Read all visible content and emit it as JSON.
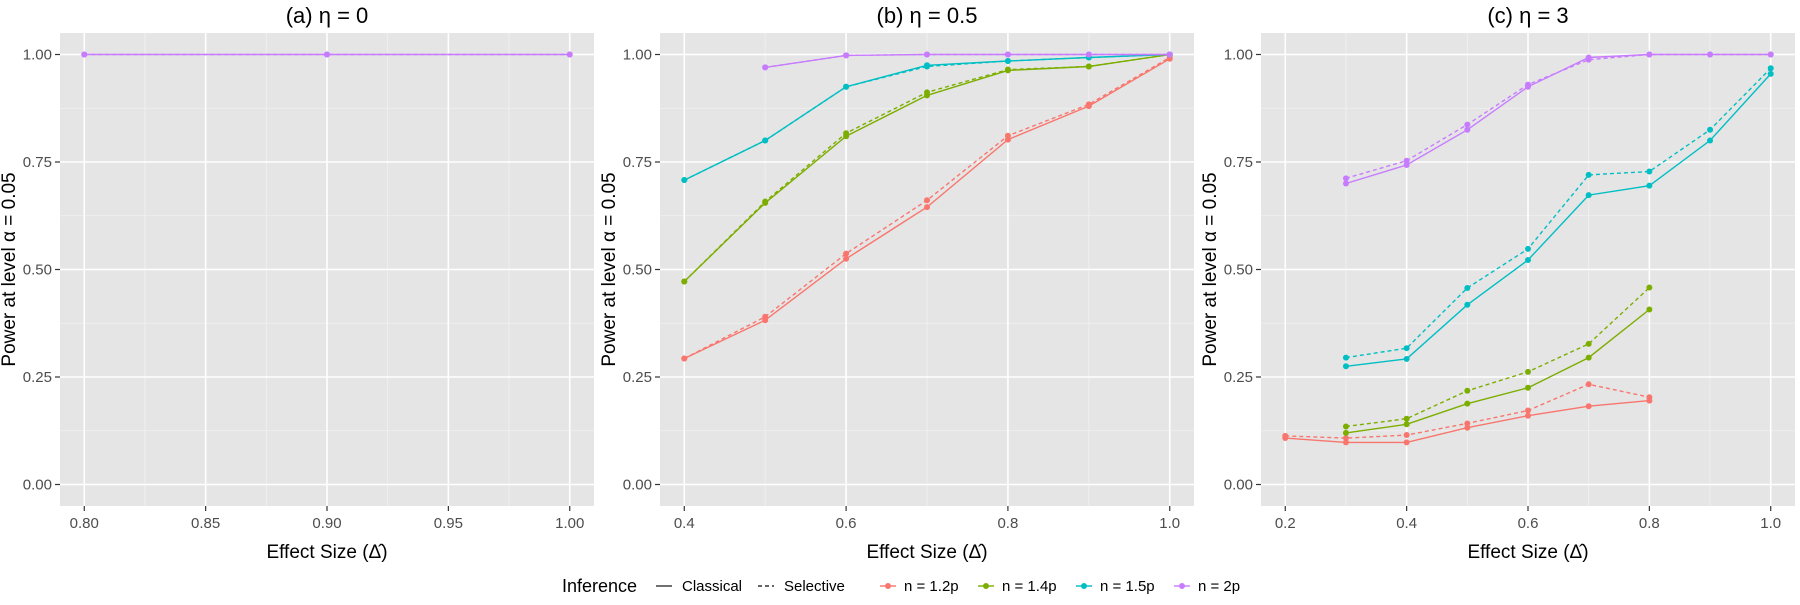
{
  "chart_data": [
    {
      "type": "line",
      "title": "(a) η = 0",
      "xlabel": "Effect Size (Δ̂)",
      "ylabel": "Power at level α = 0.05",
      "xlim": [
        0.79,
        1.01
      ],
      "ylim": [
        -0.05,
        1.05
      ],
      "xticks": [
        0.8,
        0.85,
        0.9,
        0.95,
        1.0
      ],
      "xtick_labels": [
        "0.80",
        "0.85",
        "0.90",
        "0.95",
        "1.00"
      ],
      "yticks": [
        0,
        0.25,
        0.5,
        0.75,
        1.0
      ],
      "ytick_labels": [
        "0.00",
        "0.25",
        "0.50",
        "0.75",
        "1.00"
      ],
      "series": [
        {
          "name": "n = 2p",
          "inference": "Classical",
          "x": [
            0.8,
            0.9,
            1.0
          ],
          "values": [
            1.0,
            1.0,
            1.0
          ]
        },
        {
          "name": "n = 2p",
          "inference": "Selective",
          "x": [
            0.8,
            0.9,
            1.0
          ],
          "values": [
            1.0,
            1.0,
            1.0
          ]
        }
      ]
    },
    {
      "type": "line",
      "title": "(b) η = 0.5",
      "xlabel": "Effect Size (Δ̂)",
      "ylabel": "Power at level α = 0.05",
      "xlim": [
        0.37,
        1.03
      ],
      "ylim": [
        -0.05,
        1.05
      ],
      "xticks": [
        0.4,
        0.6,
        0.8,
        1.0
      ],
      "xtick_labels": [
        "0.4",
        "0.6",
        "0.8",
        "1.0"
      ],
      "yticks": [
        0,
        0.25,
        0.5,
        0.75,
        1.0
      ],
      "ytick_labels": [
        "0.00",
        "0.25",
        "0.50",
        "0.75",
        "1.00"
      ],
      "series": [
        {
          "name": "n = 1.2p",
          "inference": "Classical",
          "x": [
            0.4,
            0.5,
            0.6,
            0.7,
            0.8,
            0.9,
            1.0
          ],
          "values": [
            0.293,
            0.382,
            0.525,
            0.645,
            0.802,
            0.88,
            0.99
          ]
        },
        {
          "name": "n = 1.2p",
          "inference": "Selective",
          "x": [
            0.4,
            0.5,
            0.6,
            0.7,
            0.8,
            0.9,
            1.0
          ],
          "values": [
            0.293,
            0.39,
            0.537,
            0.661,
            0.811,
            0.884,
            0.993
          ]
        },
        {
          "name": "n = 1.4p",
          "inference": "Classical",
          "x": [
            0.4,
            0.5,
            0.6,
            0.7,
            0.8,
            0.9,
            1.0
          ],
          "values": [
            0.472,
            0.655,
            0.81,
            0.905,
            0.963,
            0.972,
            1.0
          ]
        },
        {
          "name": "n = 1.4p",
          "inference": "Selective",
          "x": [
            0.4,
            0.5,
            0.6,
            0.7,
            0.8,
            0.9,
            1.0
          ],
          "values": [
            0.472,
            0.658,
            0.817,
            0.912,
            0.965,
            0.972,
            1.0
          ]
        },
        {
          "name": "n = 1.5p",
          "inference": "Classical",
          "x": [
            0.4,
            0.5,
            0.6,
            0.7,
            0.8,
            0.9,
            1.0
          ],
          "values": [
            0.708,
            0.8,
            0.925,
            0.975,
            0.985,
            0.993,
            1.0
          ]
        },
        {
          "name": "n = 1.5p",
          "inference": "Selective",
          "x": [
            0.4,
            0.5,
            0.6,
            0.7,
            0.8,
            0.9,
            1.0
          ],
          "values": [
            0.708,
            0.8,
            0.925,
            0.972,
            0.985,
            0.993,
            1.0
          ]
        },
        {
          "name": "n = 2p",
          "inference": "Classical",
          "x": [
            0.5,
            0.6,
            0.7,
            0.8,
            0.9,
            1.0
          ],
          "values": [
            0.97,
            0.998,
            1.0,
            1.0,
            1.0,
            1.0
          ]
        },
        {
          "name": "n = 2p",
          "inference": "Selective",
          "x": [
            0.5,
            0.6,
            0.7,
            0.8,
            0.9,
            1.0
          ],
          "values": [
            0.97,
            0.998,
            1.0,
            1.0,
            1.0,
            1.0
          ]
        }
      ]
    },
    {
      "type": "line",
      "title": "(c) η = 3",
      "xlabel": "Effect Size (Δ̂)",
      "ylabel": "Power at level α = 0.05",
      "xlim": [
        0.16,
        1.04
      ],
      "ylim": [
        -0.05,
        1.05
      ],
      "xticks": [
        0.2,
        0.4,
        0.6,
        0.8,
        1.0
      ],
      "xtick_labels": [
        "0.2",
        "0.4",
        "0.6",
        "0.8",
        "1.0"
      ],
      "yticks": [
        0,
        0.25,
        0.5,
        0.75,
        1.0
      ],
      "ytick_labels": [
        "0.00",
        "0.25",
        "0.50",
        "0.75",
        "1.00"
      ],
      "series": [
        {
          "name": "n = 1.2p",
          "inference": "Classical",
          "x": [
            0.2,
            0.3,
            0.4,
            0.5,
            0.6,
            0.7,
            0.8
          ],
          "values": [
            0.108,
            0.098,
            0.098,
            0.132,
            0.16,
            0.182,
            0.195
          ]
        },
        {
          "name": "n = 1.2p",
          "inference": "Selective",
          "x": [
            0.2,
            0.3,
            0.4,
            0.5,
            0.6,
            0.7,
            0.8
          ],
          "values": [
            0.113,
            0.108,
            0.115,
            0.142,
            0.172,
            0.233,
            0.203
          ]
        },
        {
          "name": "n = 1.4p",
          "inference": "Classical",
          "x": [
            0.3,
            0.4,
            0.5,
            0.6,
            0.7,
            0.8
          ],
          "values": [
            0.12,
            0.14,
            0.188,
            0.225,
            0.295,
            0.407
          ]
        },
        {
          "name": "n = 1.4p",
          "inference": "Selective",
          "x": [
            0.3,
            0.4,
            0.5,
            0.6,
            0.7,
            0.8
          ],
          "values": [
            0.135,
            0.153,
            0.218,
            0.262,
            0.327,
            0.458
          ]
        },
        {
          "name": "n = 1.5p",
          "inference": "Classical",
          "x": [
            0.3,
            0.4,
            0.5,
            0.6,
            0.7,
            0.8,
            0.9,
            1.0
          ],
          "values": [
            0.275,
            0.292,
            0.418,
            0.522,
            0.673,
            0.695,
            0.8,
            0.955
          ]
        },
        {
          "name": "n = 1.5p",
          "inference": "Selective",
          "x": [
            0.3,
            0.4,
            0.5,
            0.6,
            0.7,
            0.8,
            0.9,
            1.0
          ],
          "values": [
            0.295,
            0.317,
            0.457,
            0.548,
            0.72,
            0.728,
            0.825,
            0.968
          ]
        },
        {
          "name": "n = 2p",
          "inference": "Classical",
          "x": [
            0.3,
            0.4,
            0.5,
            0.6,
            0.7,
            0.8,
            0.9,
            1.0
          ],
          "values": [
            0.7,
            0.743,
            0.825,
            0.925,
            0.993,
            1.0,
            1.0,
            1.0
          ]
        },
        {
          "name": "n = 2p",
          "inference": "Selective",
          "x": [
            0.3,
            0.4,
            0.5,
            0.6,
            0.7,
            0.8,
            0.9,
            1.0
          ],
          "values": [
            0.712,
            0.753,
            0.837,
            0.93,
            0.988,
            1.0,
            1.0,
            1.0
          ]
        }
      ]
    }
  ],
  "legend": {
    "inference_title": "Inference",
    "inference_items": [
      "Classical",
      "Selective"
    ],
    "group_items": [
      "n = 1.2p",
      "n = 1.4p",
      "n = 1.5p",
      "n = 2p"
    ]
  },
  "colors": {
    "n = 1.2p": "#F8766D",
    "n = 1.4p": "#7CAE00",
    "n = 1.5p": "#00BFC4",
    "n = 2p": "#C77CFF"
  }
}
